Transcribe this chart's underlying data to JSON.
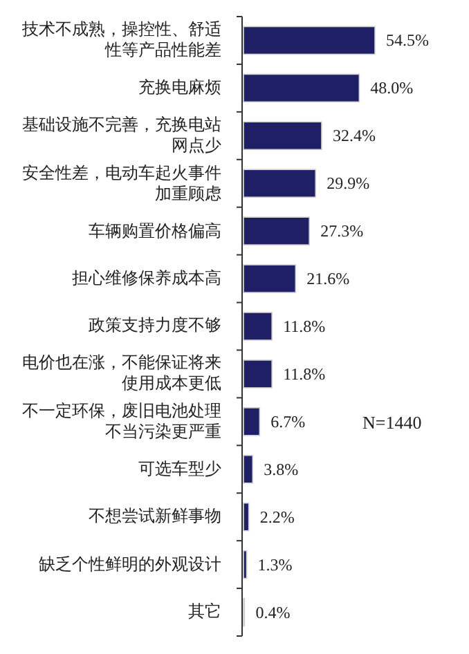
{
  "chart_data": {
    "type": "bar",
    "orientation": "horizontal",
    "categories": [
      "技术不成熟，操控性、舒适性等产品性能差",
      "充换电麻烦",
      "基础设施不完善，充换电站网点少",
      "安全性差，电动车起火事件加重顾虑",
      "车辆购置价格偏高",
      "担心维修保养成本高",
      "政策支持力度不够",
      "电价也在涨，不能保证将来使用成本更低",
      "不一定环保，废旧电池处理不当污染更严重",
      "可选车型少",
      "不想尝试新鲜事物",
      "缺乏个性鲜明的外观设计",
      "其它"
    ],
    "values": [
      54.5,
      48.0,
      32.4,
      29.9,
      27.3,
      21.6,
      11.8,
      11.8,
      6.7,
      3.8,
      2.2,
      1.3,
      0.4
    ],
    "value_labels": [
      "54.5%",
      "48.0%",
      "32.4%",
      "29.9%",
      "27.3%",
      "21.6%",
      "11.8%",
      "11.8%",
      "6.7%",
      "3.8%",
      "2.2%",
      "1.3%",
      "0.4%"
    ],
    "color": "#1f1f66",
    "annotations": [
      "N=1440"
    ]
  }
}
